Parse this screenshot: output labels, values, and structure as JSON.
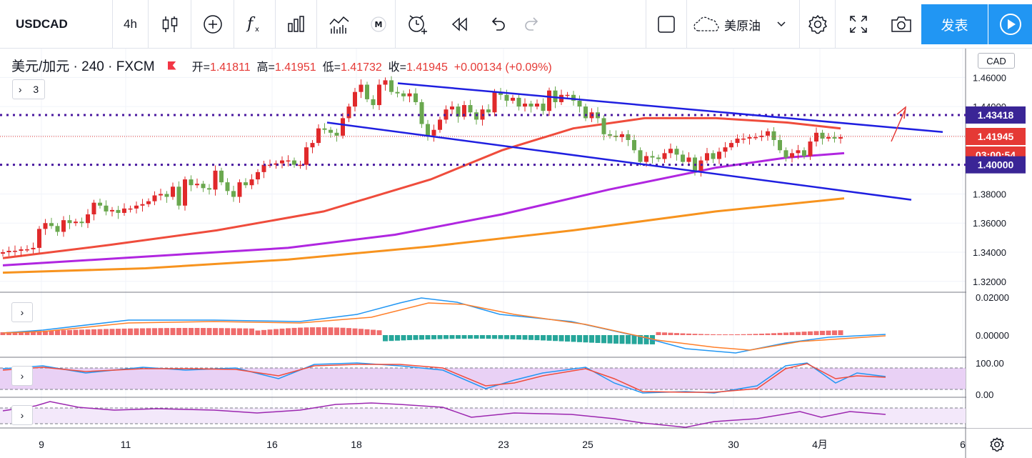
{
  "toolbar": {
    "symbol": "USDCAD",
    "interval": "4h",
    "compare_symbol": "美原油",
    "publish_label": "发表",
    "icons": [
      "candles-icon",
      "add-indicator-icon",
      "fx-icon",
      "bars-icon",
      "templates-icon",
      "m-badge-icon",
      "alert-icon",
      "replay-icon",
      "undo-icon",
      "redo-icon",
      "square-icon",
      "cloud-icon",
      "gear-icon",
      "fullscreen-icon",
      "camera-icon",
      "play-icon"
    ]
  },
  "legend": {
    "title": "美元/加元 · 240 · FXCM",
    "open_label": "开=",
    "open": "1.41811",
    "high_label": "高=",
    "high": "1.41951",
    "low_label": "低=",
    "low": "1.41732",
    "close_label": "收=",
    "close": "1.41945",
    "change": "+0.00134 (+0.09%)",
    "indicator_count": "3"
  },
  "axis": {
    "currency": "CAD",
    "price_ticks": [
      "1.46000",
      "1.44000",
      "1.42000",
      "1.40000",
      "1.38000",
      "1.36000",
      "1.34000",
      "1.32000"
    ],
    "macd_ticks": [
      "0.02000",
      "0.00000"
    ],
    "stoch_ticks": [
      "100.00",
      "0.00"
    ],
    "time_ticks": [
      "9",
      "11",
      "16",
      "18",
      "23",
      "25",
      "30",
      "4月",
      "6"
    ],
    "labels": {
      "resistance": "1.43418",
      "last_price": "1.41945",
      "countdown": "03:00:54",
      "support": "1.40000"
    }
  },
  "chart_data": {
    "type": "candlestick",
    "symbol": "USDCAD",
    "interval": "4h",
    "ylim": [
      1.315,
      1.468
    ],
    "x_ticks": [
      {
        "label": "9",
        "index": 3
      },
      {
        "label": "11",
        "index": 15
      },
      {
        "label": "16",
        "index": 27
      },
      {
        "label": "18",
        "index": 39
      },
      {
        "label": "23",
        "index": 51
      },
      {
        "label": "25",
        "index": 63
      },
      {
        "label": "30",
        "index": 75
      },
      {
        "label": "4月",
        "index": 87
      },
      {
        "label": "6",
        "index": 99
      }
    ],
    "closes": [
      1.34,
      1.341,
      1.341,
      1.342,
      1.342,
      1.343,
      1.356,
      1.36,
      1.358,
      1.354,
      1.362,
      1.36,
      1.361,
      1.36,
      1.366,
      1.374,
      1.372,
      1.368,
      1.369,
      1.367,
      1.37,
      1.37,
      1.372,
      1.373,
      1.375,
      1.379,
      1.38,
      1.378,
      1.385,
      1.372,
      1.39,
      1.386,
      1.387,
      1.384,
      1.383,
      1.396,
      1.388,
      1.382,
      1.378,
      1.388,
      1.386,
      1.39,
      1.395,
      1.4,
      1.4,
      1.401,
      1.403,
      1.403,
      1.4,
      1.4,
      1.412,
      1.415,
      1.425,
      1.424,
      1.422,
      1.42,
      1.432,
      1.44,
      1.45,
      1.455,
      1.445,
      1.441,
      1.455,
      1.458,
      1.45,
      1.449,
      1.447,
      1.449,
      1.443,
      1.428,
      1.42,
      1.424,
      1.431,
      1.438,
      1.44,
      1.433,
      1.441,
      1.436,
      1.431,
      1.438,
      1.436,
      1.45,
      1.448,
      1.444,
      1.446,
      1.44,
      1.442,
      1.44,
      1.442,
      1.437,
      1.451,
      1.443,
      1.448,
      1.448,
      1.444,
      1.44,
      1.432,
      1.436,
      1.432,
      1.421,
      1.42,
      1.419,
      1.421,
      1.417,
      1.41,
      1.402,
      1.406,
      1.405,
      1.404,
      1.408,
      1.411,
      1.407,
      1.402,
      1.405,
      1.396,
      1.403,
      1.408,
      1.404,
      1.409,
      1.412,
      1.415,
      1.418,
      1.418,
      1.419,
      1.419,
      1.42,
      1.423,
      1.417,
      1.41,
      1.405,
      1.408,
      1.41,
      1.406,
      1.416,
      1.422,
      1.418,
      1.419,
      1.418,
      1.419
    ],
    "ema_red": [
      [
        0,
        1.336
      ],
      [
        30,
        1.345
      ],
      [
        60,
        1.355
      ],
      [
        90,
        1.368
      ],
      [
        120,
        1.39
      ],
      [
        140,
        1.41
      ],
      [
        160,
        1.425
      ],
      [
        180,
        1.432
      ],
      [
        200,
        1.432
      ],
      [
        220,
        1.429
      ],
      [
        235,
        1.425
      ]
    ],
    "ma_purple": [
      [
        0,
        1.331
      ],
      [
        40,
        1.337
      ],
      [
        80,
        1.343
      ],
      [
        110,
        1.352
      ],
      [
        140,
        1.366
      ],
      [
        170,
        1.383
      ],
      [
        200,
        1.398
      ],
      [
        220,
        1.405
      ],
      [
        236,
        1.408
      ]
    ],
    "ma_orange": [
      [
        0,
        1.326
      ],
      [
        40,
        1.329
      ],
      [
        80,
        1.335
      ],
      [
        120,
        1.344
      ],
      [
        160,
        1.355
      ],
      [
        200,
        1.368
      ],
      [
        236,
        1.377
      ]
    ],
    "horizontal_levels": [
      1.43418,
      1.41945,
      1.4
    ],
    "channel_upper": [
      [
        1.456,
        557
      ],
      [
        1.4225,
        1320
      ]
    ],
    "channel_lower": [
      [
        1.429,
        458
      ],
      [
        1.376,
        1276
      ]
    ]
  }
}
